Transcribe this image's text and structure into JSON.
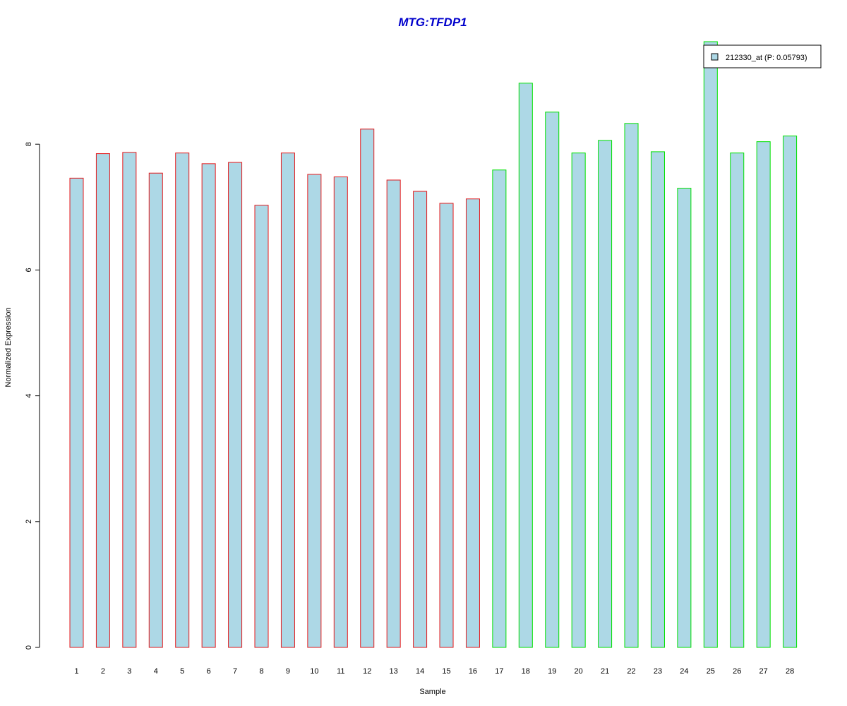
{
  "chart_data": {
    "type": "bar",
    "title": "MTG:TFDP1",
    "xlabel": "Sample",
    "ylabel": "Normalized Expression",
    "categories": [
      "1",
      "2",
      "3",
      "4",
      "5",
      "6",
      "7",
      "8",
      "9",
      "10",
      "11",
      "12",
      "13",
      "14",
      "15",
      "16",
      "17",
      "18",
      "19",
      "20",
      "21",
      "22",
      "23",
      "24",
      "25",
      "26",
      "27",
      "28"
    ],
    "series": [
      {
        "name": "212330_at (P: 0.05793)",
        "values": [
          7.46,
          7.85,
          7.87,
          7.54,
          7.86,
          7.69,
          7.71,
          7.03,
          7.86,
          7.52,
          7.48,
          8.24,
          7.43,
          7.25,
          7.06,
          7.13,
          7.59,
          8.97,
          8.51,
          7.86,
          8.06,
          8.33,
          7.88,
          7.3,
          9.63,
          7.86,
          8.04,
          8.13
        ]
      }
    ],
    "groups": [
      0,
      0,
      0,
      0,
      0,
      0,
      0,
      0,
      0,
      0,
      0,
      0,
      0,
      0,
      0,
      0,
      1,
      1,
      1,
      1,
      1,
      1,
      1,
      1,
      1,
      1,
      1,
      1
    ],
    "yticks": [
      0,
      2,
      4,
      6,
      8
    ],
    "ylim": [
      0,
      9.63
    ],
    "grid": false,
    "legend_position": "top-right",
    "colors": {
      "title": "#0000cc",
      "bar_fill": "#add8e6",
      "group_borders": [
        "#e31a1c",
        "#00e000"
      ],
      "axis": "#000000"
    }
  }
}
